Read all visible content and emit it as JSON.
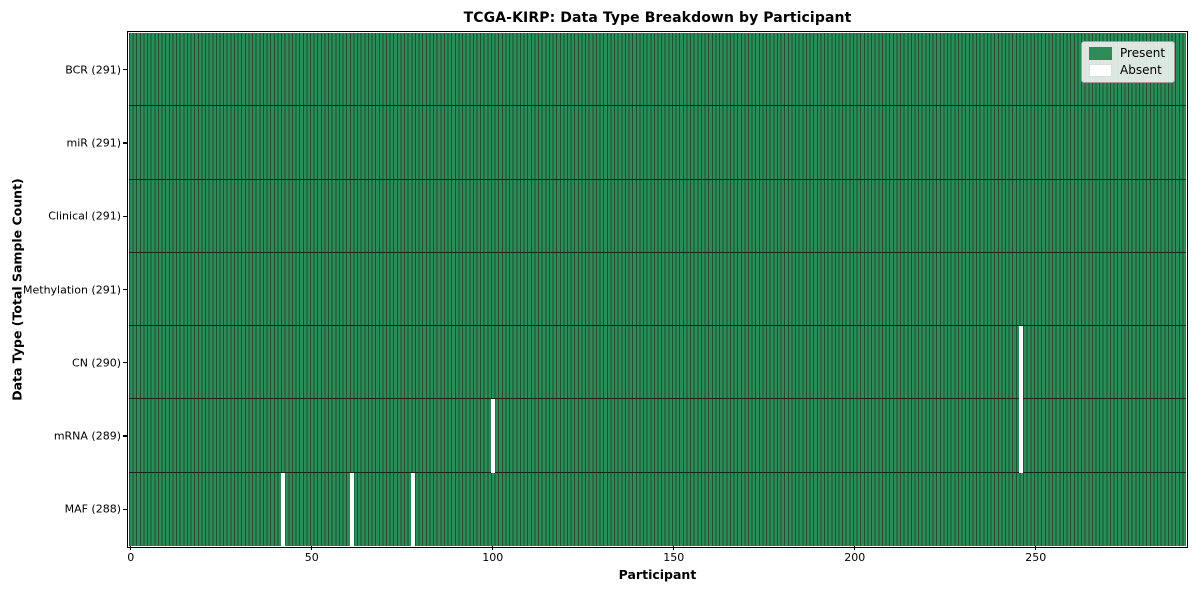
{
  "figure": {
    "title": "TCGA-KIRP: Data Type Breakdown by Participant",
    "xlabel": "Participant",
    "ylabel": "Data Type (Total Sample Count)"
  },
  "legend": {
    "items": [
      {
        "label": "Present",
        "color": "#2e8b57",
        "border": "#2e8b57"
      },
      {
        "label": "Absent",
        "color": "#ffffff",
        "border": "#d9ded9"
      }
    ]
  },
  "chart_data": {
    "type": "heatmap",
    "title": "TCGA-KIRP: Data Type Breakdown by Participant",
    "xlabel": "Participant",
    "ylabel": "Data Type (Total Sample Count)",
    "x_ticks": [
      0,
      50,
      100,
      150,
      200,
      250
    ],
    "xlim": [
      -0.5,
      291.5
    ],
    "n_participants": 291,
    "legend": [
      "Present",
      "Absent"
    ],
    "legend_position": "upper right",
    "grid": false,
    "colors": {
      "present": "#2e8b57",
      "present_edge": "#1b5134",
      "absent": "#ffffff",
      "row_separator": "#0e2a1b"
    },
    "rows": [
      {
        "label": "BCR (291)",
        "name": "BCR",
        "total_samples": 291,
        "absent_participants": []
      },
      {
        "label": "miR (291)",
        "name": "miR",
        "total_samples": 291,
        "absent_participants": []
      },
      {
        "label": "Clinical (291)",
        "name": "Clinical",
        "total_samples": 291,
        "absent_participants": []
      },
      {
        "label": "Methylation (291)",
        "name": "Methylation",
        "total_samples": 291,
        "absent_participants": []
      },
      {
        "label": "CN (290)",
        "name": "CN",
        "total_samples": 290,
        "absent_participants": [
          246
        ]
      },
      {
        "label": "mRNA (289)",
        "name": "mRNA",
        "total_samples": 289,
        "absent_participants": [
          100,
          246
        ]
      },
      {
        "label": "MAF (288)",
        "name": "MAF",
        "total_samples": 288,
        "absent_participants": [
          42,
          61,
          78
        ]
      }
    ]
  }
}
